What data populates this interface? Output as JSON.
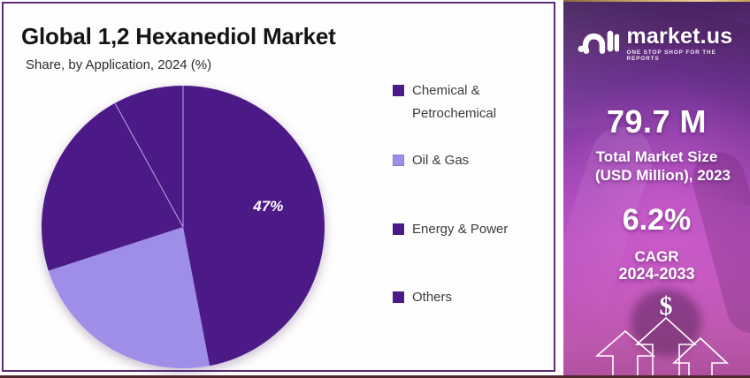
{
  "chart_data": {
    "type": "pie",
    "title": "Global 1,2 Hexanediol Market",
    "subtitle": "Share, by Application, 2024 (%)",
    "categories": [
      "Chemical & Petrochemical",
      "Oil & Gas",
      "Energy & Power",
      "Others"
    ],
    "values": [
      47,
      23,
      22,
      8
    ],
    "unit": "%",
    "labels_shown": [
      "47%",
      "",
      "",
      ""
    ],
    "colors": [
      "#4C1A86",
      "#9E8EE8",
      "#4C1A86",
      "#4C1A86"
    ],
    "legend_position": "right",
    "start_angle_deg": 0,
    "direction": "clockwise"
  },
  "promo": {
    "brand": "market.us",
    "tagline": "ONE STOP SHOP FOR THE REPORTS",
    "market_size_value": "79.7 M",
    "market_size_label_1": "Total Market Size",
    "market_size_label_2": "(USD Million), 2023",
    "cagr_value": "6.2%",
    "cagr_label_1": "CAGR",
    "cagr_label_2": "2024-2033",
    "dollar_sign": "$"
  },
  "colors": {
    "accent_dark_purple": "#4C1A86",
    "accent_lavender": "#9E8EE8",
    "card_border": "#5c2b78",
    "panel_magenta": "#bb4fc4",
    "gold_line": "#d4af6e",
    "footer_strip": "#4f282b",
    "pie_divider": "#b9a6e8",
    "pie_label_color": "#ffffff"
  }
}
